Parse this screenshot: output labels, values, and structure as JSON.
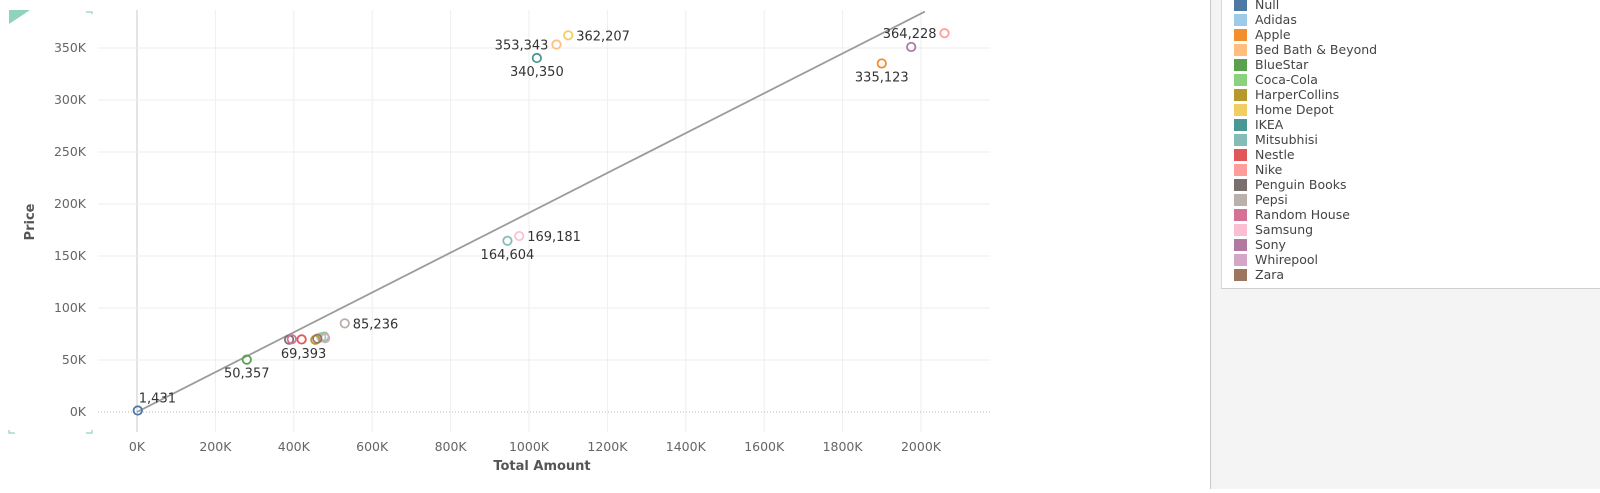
{
  "chart_data": {
    "type": "scatter",
    "xlabel": "Total Amount",
    "ylabel": "Price",
    "xlim": [
      -110,
      2190
    ],
    "ylim": [
      -20000,
      385000
    ],
    "x_ticks": [
      0,
      200,
      400,
      600,
      800,
      1000,
      1200,
      1400,
      1600,
      1800,
      2000
    ],
    "x_tick_labels": [
      "0K",
      "200K",
      "400K",
      "600K",
      "800K",
      "1000K",
      "1200K",
      "1400K",
      "1600K",
      "1800K",
      "2000K"
    ],
    "y_ticks": [
      0,
      50000,
      100000,
      150000,
      200000,
      250000,
      300000,
      350000
    ],
    "y_tick_labels": [
      "0K",
      "50K",
      "100K",
      "150K",
      "200K",
      "250K",
      "300K",
      "350K"
    ],
    "grid": true,
    "trend_line": {
      "x": [
        0,
        2010
      ],
      "y": [
        0,
        385000
      ],
      "color": "#9b9b9b"
    },
    "series": [
      {
        "name": "Null",
        "color": "#4e79a7",
        "points": [
          [
            2,
            1431
          ]
        ]
      },
      {
        "name": "Adidas",
        "color": "#a0cbe8",
        "points": [
          [
            470,
            72000
          ]
        ]
      },
      {
        "name": "Apple",
        "color": "#f28e2b",
        "points": [
          [
            1900,
            335123
          ]
        ]
      },
      {
        "name": "Bed Bath & Beyond",
        "color": "#ffbe7d",
        "points": [
          [
            1070,
            353343
          ]
        ]
      },
      {
        "name": "BlueStar",
        "color": "#59a14f",
        "points": [
          [
            280,
            50357
          ]
        ]
      },
      {
        "name": "Coca-Cola",
        "color": "#8cd17d",
        "points": [
          [
            478,
            72500
          ]
        ]
      },
      {
        "name": "HarperCollins",
        "color": "#b6992d",
        "points": [
          [
            455,
            69393
          ]
        ]
      },
      {
        "name": "Home Depot",
        "color": "#f1ce63",
        "points": [
          [
            1100,
            362207
          ]
        ]
      },
      {
        "name": "IKEA",
        "color": "#499894",
        "points": [
          [
            1020,
            340350
          ]
        ]
      },
      {
        "name": "Mitsubhisi",
        "color": "#86bcb6",
        "points": [
          [
            945,
            164604
          ]
        ]
      },
      {
        "name": "Nestle",
        "color": "#e15759",
        "points": [
          [
            420,
            69800
          ]
        ]
      },
      {
        "name": "Nike",
        "color": "#ff9d9a",
        "points": [
          [
            2060,
            364228
          ]
        ]
      },
      {
        "name": "Penguin Books",
        "color": "#79706e",
        "points": [
          [
            388,
            69600
          ]
        ]
      },
      {
        "name": "Pepsi",
        "color": "#bab0ac",
        "points": [
          [
            530,
            85236
          ]
        ]
      },
      {
        "name": "Random House",
        "color": "#d37295",
        "points": [
          [
            395,
            70000
          ]
        ]
      },
      {
        "name": "Samsung",
        "color": "#fabfd2",
        "points": [
          [
            975,
            169181
          ]
        ]
      },
      {
        "name": "Sony",
        "color": "#b07aa1",
        "points": [
          [
            1975,
            351000
          ]
        ]
      },
      {
        "name": "Whirepool",
        "color": "#d4a6c8",
        "points": [
          [
            480,
            71000
          ]
        ]
      },
      {
        "name": "Zara",
        "color": "#9d7660",
        "points": [
          [
            460,
            70500
          ]
        ]
      }
    ],
    "labels": [
      {
        "text": "1,431",
        "x": 2,
        "y": 1431,
        "pos": "above-right"
      },
      {
        "text": "50,357",
        "x": 280,
        "y": 50357,
        "pos": "below"
      },
      {
        "text": "69,393",
        "x": 425,
        "y": 69393,
        "pos": "below"
      },
      {
        "text": "85,236",
        "x": 530,
        "y": 85236,
        "pos": "right"
      },
      {
        "text": "164,604",
        "x": 945,
        "y": 164604,
        "pos": "below"
      },
      {
        "text": "169,181",
        "x": 975,
        "y": 169181,
        "pos": "right"
      },
      {
        "text": "340,350",
        "x": 1020,
        "y": 340350,
        "pos": "below"
      },
      {
        "text": "353,343",
        "x": 1070,
        "y": 353343,
        "pos": "left"
      },
      {
        "text": "362,207",
        "x": 1100,
        "y": 362207,
        "pos": "right"
      },
      {
        "text": "364,228",
        "x": 2060,
        "y": 364228,
        "pos": "left"
      },
      {
        "text": "335,123",
        "x": 1900,
        "y": 335123,
        "pos": "below"
      }
    ]
  }
}
